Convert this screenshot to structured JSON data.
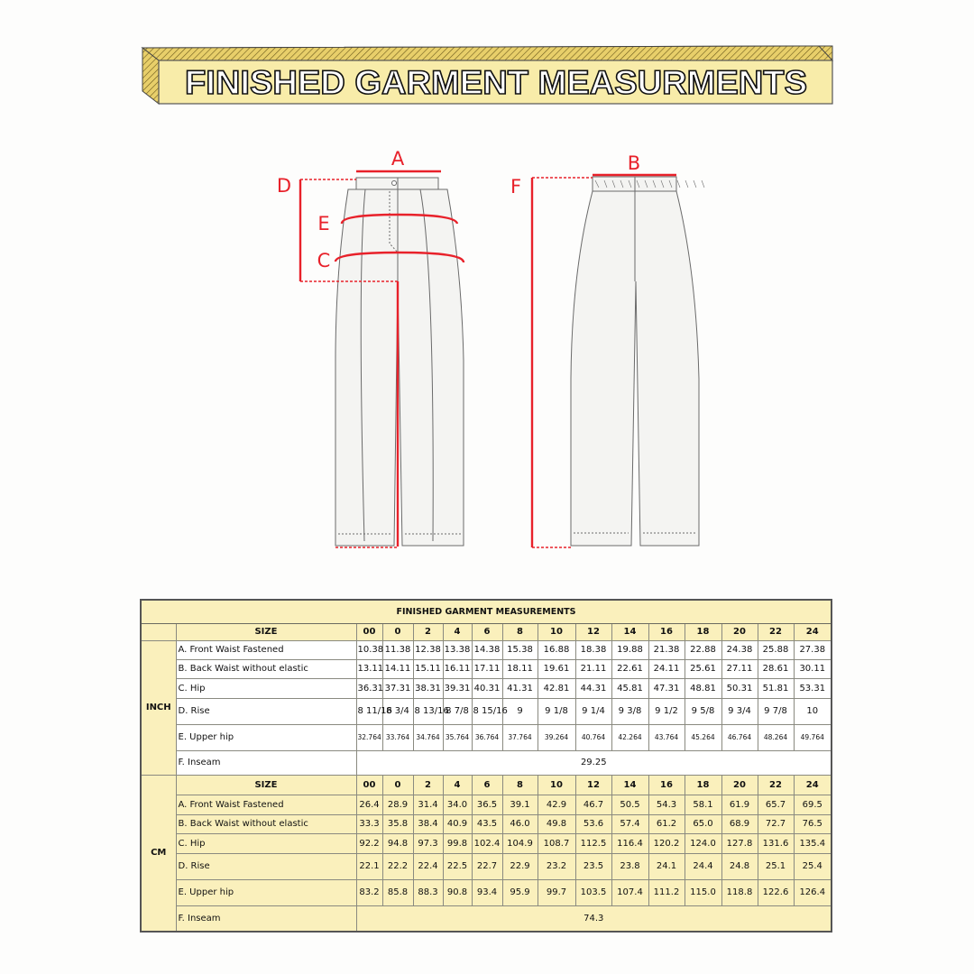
{
  "banner": {
    "title": "FINISHED GARMENT MEASURMENTS",
    "face_color": "#f8eca9",
    "stripe_color": "#d8b949"
  },
  "diagram": {
    "labels": {
      "A": "A",
      "B": "B",
      "C": "C",
      "D": "D",
      "E": "E",
      "F": "F"
    },
    "marker_color": "#e8212a",
    "garment_fill": "#f4f4f2"
  },
  "table": {
    "title": "FINISHED GARMENT MEASUREMENTS",
    "size_header": "SIZE",
    "sizes": [
      "00",
      "0",
      "2",
      "4",
      "6",
      "8",
      "10",
      "12",
      "14",
      "16",
      "18",
      "20",
      "22",
      "24"
    ],
    "inch": {
      "unit": "INCH",
      "rows": [
        {
          "label": "A. Front Waist Fastened",
          "values": [
            "10.38",
            "11.38",
            "12.38",
            "13.38",
            "14.38",
            "15.38",
            "16.88",
            "18.38",
            "19.88",
            "21.38",
            "22.88",
            "24.38",
            "25.88",
            "27.38"
          ]
        },
        {
          "label": "B. Back Waist without elastic",
          "values": [
            "13.11",
            "14.11",
            "15.11",
            "16.11",
            "17.11",
            "18.11",
            "19.61",
            "21.11",
            "22.61",
            "24.11",
            "25.61",
            "27.11",
            "28.61",
            "30.11"
          ]
        },
        {
          "label": "C. Hip",
          "values": [
            "36.31",
            "37.31",
            "38.31",
            "39.31",
            "40.31",
            "41.31",
            "42.81",
            "44.31",
            "45.81",
            "47.31",
            "48.81",
            "50.31",
            "51.81",
            "53.31"
          ]
        },
        {
          "label": "D. Rise",
          "values": [
            "8 11/16",
            "8 3/4",
            "8 13/16",
            "8 7/8",
            "8 15/16",
            "9",
            "9 1/8",
            "9 1/4",
            "9 3/8",
            "9 1/2",
            "9 5/8",
            "9 3/4",
            "9 7/8",
            "10"
          ]
        },
        {
          "label": "E. Upper hip",
          "values": [
            "32.764",
            "33.764",
            "34.764",
            "35.764",
            "36.764",
            "37.764",
            "39.264",
            "40.764",
            "42.264",
            "43.764",
            "45.264",
            "46.764",
            "48.264",
            "49.764"
          ]
        }
      ],
      "inseam": {
        "label": "F. Inseam",
        "value": "29.25"
      }
    },
    "cm": {
      "unit": "CM",
      "rows": [
        {
          "label": "A. Front Waist Fastened",
          "values": [
            "26.4",
            "28.9",
            "31.4",
            "34.0",
            "36.5",
            "39.1",
            "42.9",
            "46.7",
            "50.5",
            "54.3",
            "58.1",
            "61.9",
            "65.7",
            "69.5"
          ]
        },
        {
          "label": "B. Back Waist without elastic",
          "values": [
            "33.3",
            "35.8",
            "38.4",
            "40.9",
            "43.5",
            "46.0",
            "49.8",
            "53.6",
            "57.4",
            "61.2",
            "65.0",
            "68.9",
            "72.7",
            "76.5"
          ]
        },
        {
          "label": "C. Hip",
          "values": [
            "92.2",
            "94.8",
            "97.3",
            "99.8",
            "102.4",
            "104.9",
            "108.7",
            "112.5",
            "116.4",
            "120.2",
            "124.0",
            "127.8",
            "131.6",
            "135.4"
          ]
        },
        {
          "label": "D. Rise",
          "values": [
            "22.1",
            "22.2",
            "22.4",
            "22.5",
            "22.7",
            "22.9",
            "23.2",
            "23.5",
            "23.8",
            "24.1",
            "24.4",
            "24.8",
            "25.1",
            "25.4"
          ]
        },
        {
          "label": "E. Upper hip",
          "values": [
            "83.2",
            "85.8",
            "88.3",
            "90.8",
            "93.4",
            "95.9",
            "99.7",
            "103.5",
            "107.4",
            "111.2",
            "115.0",
            "118.8",
            "122.6",
            "126.4"
          ]
        }
      ],
      "inseam": {
        "label": "F. Inseam",
        "value": "74.3"
      }
    }
  }
}
